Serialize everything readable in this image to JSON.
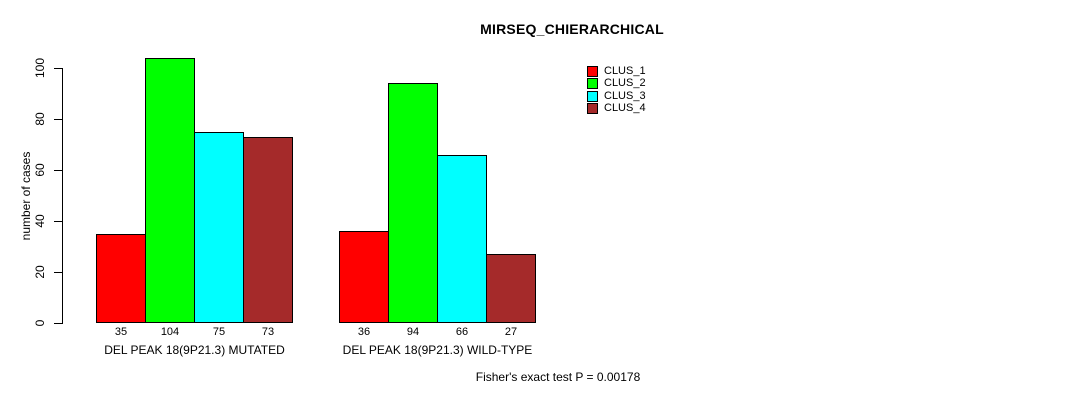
{
  "chart_data": {
    "type": "bar",
    "title": "MIRSEQ_CHIERARCHICAL",
    "ylabel": "number of cases",
    "xlabel": "",
    "categories": [
      "DEL PEAK 18(9P21.3) MUTATED",
      "DEL PEAK 18(9P21.3) WILD-TYPE"
    ],
    "series": [
      {
        "name": "CLUS_1",
        "color": "#ff0000",
        "values": [
          35,
          36
        ]
      },
      {
        "name": "CLUS_2",
        "color": "#00ff00",
        "values": [
          104,
          94
        ]
      },
      {
        "name": "CLUS_3",
        "color": "#00ffff",
        "values": [
          75,
          66
        ]
      },
      {
        "name": "CLUS_4",
        "color": "#a52a2a",
        "values": [
          73,
          27
        ]
      }
    ],
    "yticks": [
      0,
      20,
      40,
      60,
      80,
      100
    ],
    "ylim": [
      0,
      104
    ],
    "grid": false,
    "legend_position": "top-right",
    "legend_entries": [
      "CLUS_1",
      "CLUS_2",
      "CLUS_3",
      "CLUS_4"
    ],
    "bar_values_shown": true,
    "annotation": "Fisher's exact test P = 0.00178"
  }
}
